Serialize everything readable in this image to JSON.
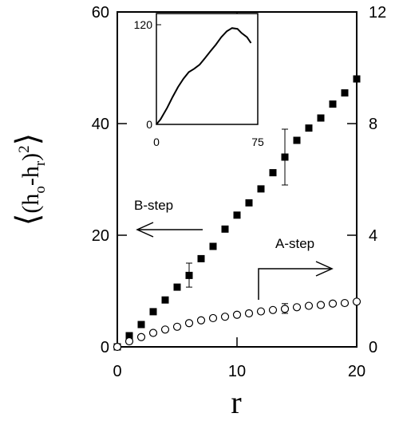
{
  "chart_data": {
    "type": "scatter",
    "xlabel": "r",
    "ylabel": {
      "open": "⟨",
      "left": "(h",
      "sub1": "o",
      "middle": "-h",
      "sub2": "r",
      "right": ")",
      "sup": "2",
      "close": "⟩"
    },
    "xlim": [
      0,
      20
    ],
    "ylim_left": [
      0,
      60
    ],
    "ylim_right": [
      0,
      12
    ],
    "x_ticks": [
      0,
      10,
      20
    ],
    "y_ticks_left": [
      0,
      20,
      40,
      60
    ],
    "y_ticks_right": [
      0,
      4,
      8,
      12
    ],
    "series": [
      {
        "name": "B-step",
        "axis": "left",
        "marker": "filled-square",
        "x": [
          0,
          1,
          2,
          3,
          4,
          5,
          6,
          7,
          8,
          9,
          10,
          11,
          12,
          13,
          14,
          15,
          16,
          17,
          18,
          19,
          20
        ],
        "y": [
          0,
          2.0,
          4.0,
          6.3,
          8.4,
          10.7,
          12.8,
          15.8,
          18.0,
          21.1,
          23.6,
          25.8,
          28.3,
          31.2,
          34.0,
          37.0,
          39.2,
          41.0,
          43.5,
          45.5,
          48.0
        ],
        "error_bars": [
          {
            "x": 6,
            "low": 10.7,
            "high": 15.0
          },
          {
            "x": 14,
            "low": 29.0,
            "high": 39.0
          }
        ]
      },
      {
        "name": "A-step",
        "axis": "right",
        "marker": "open-circle",
        "x": [
          0,
          1,
          2,
          3,
          4,
          5,
          6,
          7,
          8,
          9,
          10,
          11,
          12,
          13,
          14,
          15,
          16,
          17,
          18,
          19,
          20
        ],
        "y": [
          0,
          0.2,
          0.35,
          0.5,
          0.62,
          0.72,
          0.85,
          0.95,
          1.03,
          1.08,
          1.15,
          1.2,
          1.27,
          1.32,
          1.36,
          1.42,
          1.47,
          1.5,
          1.55,
          1.57,
          1.62
        ],
        "error_bars": [
          {
            "x": 14,
            "low": 1.2,
            "high": 1.55
          }
        ]
      }
    ],
    "annotations": {
      "b_step_label": "B-step",
      "a_step_label": "A-step"
    },
    "inset": {
      "type": "line",
      "xlim": [
        0,
        75
      ],
      "ylim": [
        0,
        120
      ],
      "x_ticks": [
        0,
        75
      ],
      "y_ticks": [
        0,
        120
      ],
      "x": [
        0,
        3,
        8,
        12,
        16,
        20,
        24,
        28,
        32,
        36,
        40,
        44,
        48,
        52,
        56,
        60,
        63,
        67,
        70
      ],
      "y": [
        0,
        6,
        20,
        33,
        45,
        55,
        63,
        67,
        72,
        80,
        88,
        96,
        105,
        112,
        116,
        115,
        110,
        105,
        98
      ]
    }
  }
}
